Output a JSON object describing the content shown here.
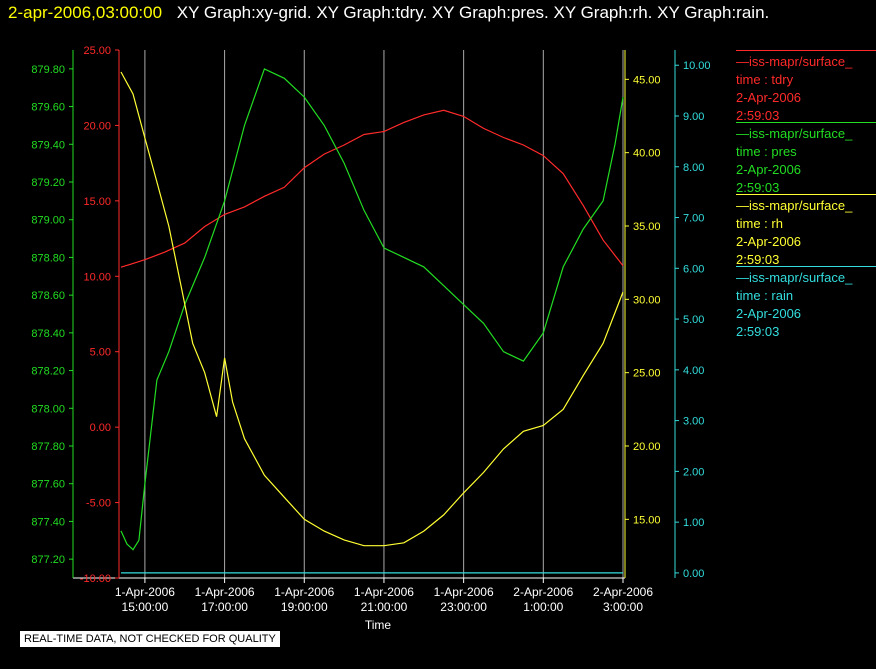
{
  "header": {
    "timestamp": "2-apr-2006,03:00:00",
    "titles": "XY Graph:xy-grid.  XY Graph:tdry.  XY Graph:pres.  XY Graph:rh.  XY Graph:rain."
  },
  "colors": {
    "tdry": "#ff2a2a",
    "pres": "#22dd22",
    "rh": "#ffff33",
    "rain": "#33dddd",
    "grid": "#aaaaaa"
  },
  "legend": [
    {
      "source": "iss-mapr/surface_",
      "var": "time : tdry",
      "date": "2-Apr-2006",
      "time": "2:59:03",
      "color": "#ff2a2a"
    },
    {
      "source": "iss-mapr/surface_",
      "var": "time : pres",
      "date": "2-Apr-2006",
      "time": "2:59:03",
      "color": "#22dd22"
    },
    {
      "source": "iss-mapr/surface_",
      "var": "time : rh",
      "date": "2-Apr-2006",
      "time": "2:59:03",
      "color": "#ffff33"
    },
    {
      "source": "iss-mapr/surface_",
      "var": "time : rain",
      "date": "2-Apr-2006",
      "time": "2:59:03",
      "color": "#33dddd"
    }
  ],
  "quality_note": "REAL-TIME DATA, NOT CHECKED FOR QUALITY",
  "chart_data": {
    "type": "line",
    "xlabel": "Time",
    "x_ticks": [
      {
        "date": "1-Apr-2006",
        "time": "15:00:00",
        "hour": 0
      },
      {
        "date": "1-Apr-2006",
        "time": "17:00:00",
        "hour": 2
      },
      {
        "date": "1-Apr-2006",
        "time": "19:00:00",
        "hour": 4
      },
      {
        "date": "1-Apr-2006",
        "time": "21:00:00",
        "hour": 6
      },
      {
        "date": "1-Apr-2006",
        "time": "23:00:00",
        "hour": 8
      },
      {
        "date": "2-Apr-2006",
        "time": "1:00:00",
        "hour": 10
      },
      {
        "date": "2-Apr-2006",
        "time": "3:00:00",
        "hour": 12
      }
    ],
    "xlim_hours": [
      -0.6,
      12
    ],
    "axes": {
      "pres": {
        "min": 877.1,
        "max": 879.9,
        "ticks": [
          "877.20",
          "877.40",
          "877.60",
          "877.80",
          "878.00",
          "878.20",
          "878.40",
          "878.60",
          "878.80",
          "879.00",
          "879.20",
          "879.40",
          "879.60",
          "879.80"
        ]
      },
      "tdry": {
        "min": -10,
        "max": 25,
        "ticks": [
          "-10.00",
          "-5.00",
          "0.00",
          "5.00",
          "10.00",
          "15.00",
          "20.00",
          "25.00"
        ]
      },
      "rh": {
        "min": 11,
        "max": 47,
        "ticks": [
          "15.00",
          "20.00",
          "25.00",
          "30.00",
          "35.00",
          "40.00",
          "45.00"
        ]
      },
      "rain": {
        "min": -0.1,
        "max": 10.3,
        "ticks": [
          "0.00",
          "1.00",
          "2.00",
          "3.00",
          "4.00",
          "5.00",
          "6.00",
          "7.00",
          "8.00",
          "9.00",
          "10.00"
        ]
      }
    },
    "series": [
      {
        "name": "tdry",
        "x": [
          -0.6,
          0,
          0.5,
          1,
          1.5,
          2,
          2.5,
          3,
          3.5,
          4,
          4.5,
          5,
          5.5,
          6,
          6.5,
          7,
          7.5,
          8,
          8.5,
          9,
          9.5,
          10,
          10.5,
          11,
          11.5,
          12
        ],
        "y": [
          10.6,
          11.1,
          11.6,
          12.2,
          13.3,
          14.1,
          14.6,
          15.3,
          15.9,
          17.2,
          18.1,
          18.7,
          19.4,
          19.6,
          20.2,
          20.7,
          21.0,
          20.6,
          19.8,
          19.2,
          18.7,
          18.0,
          16.8,
          14.7,
          12.4,
          10.7
        ]
      },
      {
        "name": "pres",
        "x": [
          -0.6,
          -0.45,
          -0.3,
          -0.15,
          0,
          0.3,
          0.6,
          1,
          1.5,
          2,
          2.5,
          3,
          3.5,
          4,
          4.5,
          5,
          5.5,
          6,
          6.5,
          7,
          7.5,
          8,
          8.5,
          9,
          9.5,
          10,
          10.5,
          11,
          11.5,
          11.8,
          12
        ],
        "y": [
          877.35,
          877.28,
          877.25,
          877.3,
          877.6,
          878.15,
          878.3,
          878.55,
          878.8,
          879.1,
          879.5,
          879.8,
          879.75,
          879.65,
          879.5,
          879.3,
          879.05,
          878.85,
          878.8,
          878.75,
          878.65,
          878.55,
          878.45,
          878.3,
          878.25,
          878.4,
          878.75,
          878.95,
          879.1,
          879.4,
          879.65
        ]
      },
      {
        "name": "rh",
        "x": [
          -0.6,
          -0.3,
          0,
          0.3,
          0.6,
          0.9,
          1.2,
          1.5,
          1.8,
          2,
          2.2,
          2.5,
          3,
          3.5,
          4,
          4.5,
          5,
          5.5,
          6,
          6.5,
          7,
          7.5,
          8,
          8.5,
          9,
          9.5,
          10,
          10.5,
          11,
          11.5,
          12
        ],
        "y": [
          45.5,
          44,
          41,
          38,
          35,
          31,
          27,
          25,
          22,
          26,
          23,
          20.5,
          18,
          16.5,
          15,
          14.2,
          13.6,
          13.2,
          13.2,
          13.4,
          14.2,
          15.3,
          16.8,
          18.2,
          19.8,
          21.0,
          21.4,
          22.5,
          24.8,
          27.0,
          30.5
        ]
      },
      {
        "name": "rain",
        "x": [
          -0.6,
          12
        ],
        "y": [
          0.0,
          0.0
        ]
      }
    ]
  }
}
